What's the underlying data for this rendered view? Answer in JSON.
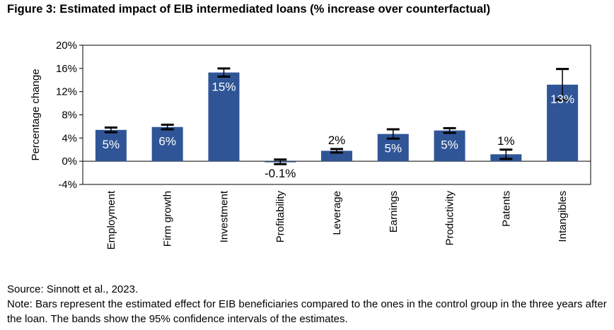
{
  "figure": {
    "title": "Figure 3: Estimated impact of EIB intermediated loans (% increase over counterfactual)",
    "source": "Source: Sinnott et al., 2023.",
    "note": "Note: Bars represent the estimated effect for EIB beneficiaries compared to the ones in the control group in the three years after the loan. The bands show the 95% confidence intervals of the estimates."
  },
  "colors": {
    "bar": "#2F5597",
    "label_inside": "#ffffff",
    "label_outside": "#000000"
  },
  "chart_data": {
    "type": "bar",
    "title": "",
    "xlabel": "",
    "ylabel": "Percentage change",
    "ylim": [
      -4,
      20
    ],
    "yticks": [
      -4,
      0,
      4,
      8,
      12,
      16,
      20
    ],
    "ytick_labels": [
      "-4%",
      "0%",
      "4%",
      "8%",
      "12%",
      "16%",
      "20%"
    ],
    "categories": [
      "Employment",
      "Firm growth",
      "Investment",
      "Profitability",
      "Leverage",
      "Earnings",
      "Productivity",
      "Patents",
      "Intangibles"
    ],
    "values": [
      5.4,
      5.9,
      15.3,
      -0.1,
      1.8,
      4.7,
      5.3,
      1.2,
      13.2
    ],
    "ci_low": [
      5.0,
      5.5,
      14.6,
      -0.5,
      1.5,
      3.9,
      4.9,
      0.4,
      10.6
    ],
    "ci_high": [
      5.8,
      6.3,
      16.0,
      0.3,
      2.1,
      5.5,
      5.7,
      2.0,
      15.9
    ],
    "data_labels": [
      "5%",
      "6%",
      "15%",
      "-0.1%",
      "2%",
      "5%",
      "5%",
      "1%",
      "13%"
    ],
    "label_inside": [
      true,
      true,
      true,
      false,
      false,
      true,
      true,
      false,
      true
    ],
    "grid": false,
    "legend": "none"
  }
}
